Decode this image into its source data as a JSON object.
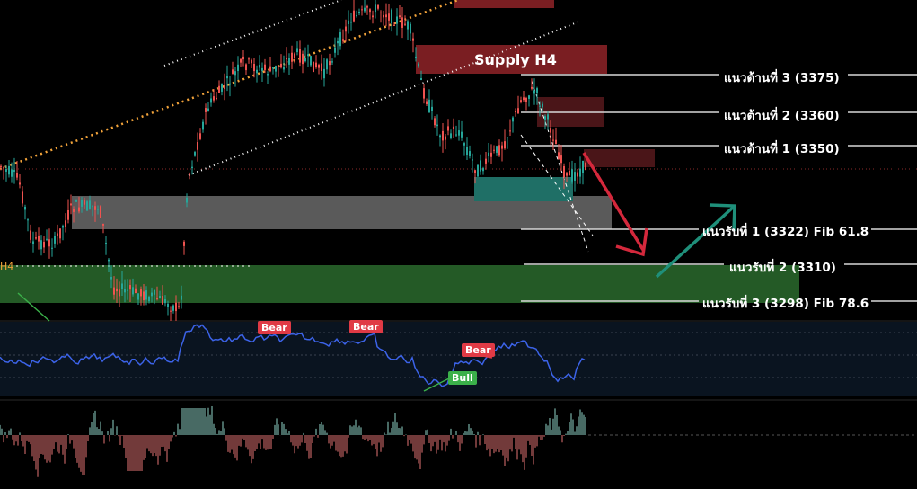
{
  "supply_label": "Supply H4",
  "h4_tag": "H4",
  "levels": [
    {
      "label": "แนวต้านที่ 3 (3375)",
      "value": 3375
    },
    {
      "label": "แนวต้านที่ 2 (3360)",
      "value": 3360
    },
    {
      "label": "แนวต้านที่ 1 (3350)",
      "value": 3350
    },
    {
      "label": "แนวรับที่ 1 (3322) Fib 61.8",
      "value": 3322
    },
    {
      "label": "แนวรับที่ 2 (3310)",
      "value": 3310
    },
    {
      "label": "แนวรับที่ 3 (3298) Fib 78.6",
      "value": 3298
    }
  ],
  "rsi_tags": {
    "bear_1": "Bear",
    "bear_2": "Bear",
    "bear_3": "Bear",
    "bull": "Bull"
  },
  "colors": {
    "background": "#000000",
    "bull_candle": "#26a69a",
    "bear_candle": "#ef5350",
    "supply": "#7a1e22",
    "demand": "#245a26",
    "gray_zone": "#5a5a5a",
    "teal_zone": "#1f6f66",
    "rsi_line": "#3c63e8",
    "channel_orange": "#f2a33a",
    "arrow_down": "#d4283c",
    "arrow_up": "#1f8f7a"
  },
  "chart_data": {
    "type": "candlestick",
    "levels": [
      3375,
      3360,
      3350,
      3322,
      3310,
      3298
    ],
    "annotations": [
      "Supply H4",
      "Bear",
      "Bear",
      "Bear",
      "Bull"
    ]
  }
}
